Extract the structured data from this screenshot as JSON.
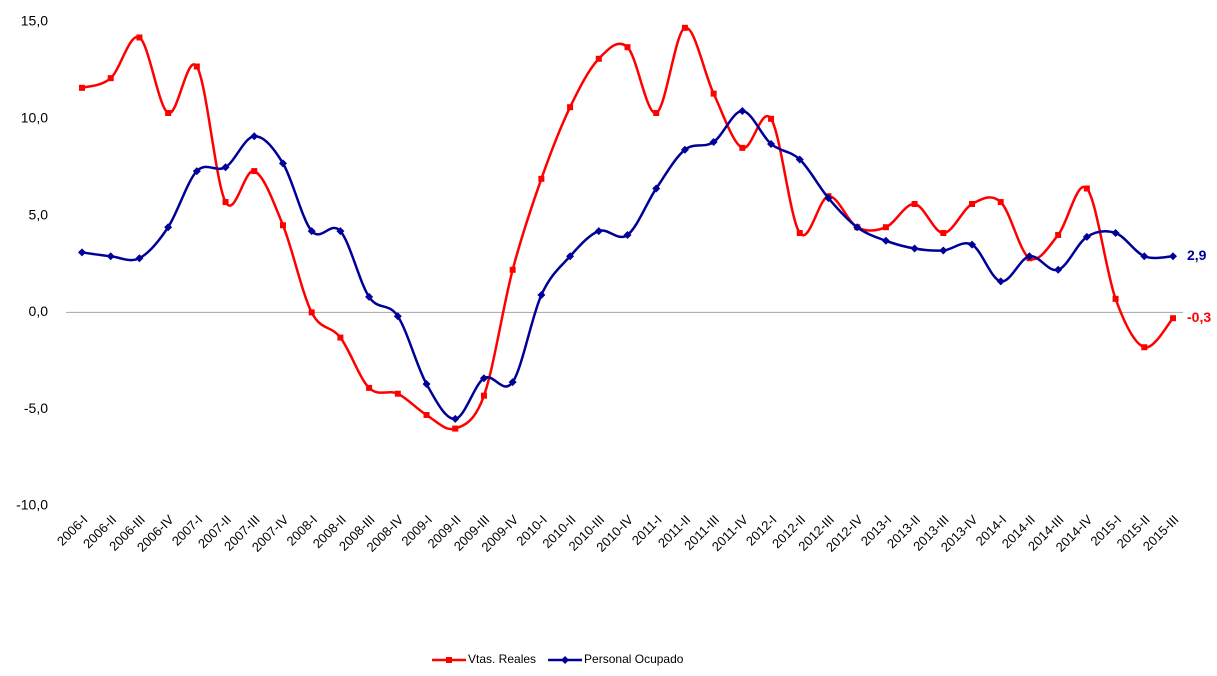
{
  "chart_data": {
    "type": "line",
    "categories": [
      "2006-I",
      "2006-II",
      "2006-III",
      "2006-IV",
      "2007-I",
      "2007-II",
      "2007-III",
      "2007-IV",
      "2008-I",
      "2008-II",
      "2008-III",
      "2008-IV",
      "2009-I",
      "2009-II",
      "2009-III",
      "2009-IV",
      "2010-I",
      "2010-II",
      "2010-III",
      "2010-IV",
      "2011-I",
      "2011-II",
      "2011-III",
      "2011-IV",
      "2012-I",
      "2012-II",
      "2012-III",
      "2012-IV",
      "2013-I",
      "2013-II",
      "2013-III",
      "2013-IV",
      "2014-I",
      "2014-II",
      "2014-III",
      "2014-IV",
      "2015-I",
      "2015-II",
      "2015-III"
    ],
    "series": [
      {
        "name": "Vtas. Reales",
        "color": "#ff0000",
        "marker": "square",
        "values": [
          11.6,
          12.1,
          14.2,
          10.3,
          12.7,
          5.7,
          7.3,
          4.5,
          0.0,
          -1.3,
          -3.9,
          -4.2,
          -5.3,
          -6.0,
          -4.3,
          2.2,
          6.9,
          10.6,
          13.1,
          13.7,
          10.3,
          14.7,
          11.3,
          8.5,
          10.0,
          4.1,
          6.0,
          4.4,
          4.4,
          5.6,
          4.1,
          5.6,
          5.7,
          2.8,
          4.0,
          6.4,
          0.7,
          -1.8,
          -0.3
        ],
        "value_labels": [
          null,
          null,
          null,
          null,
          null,
          null,
          null,
          null,
          null,
          null,
          null,
          null,
          null,
          null,
          null,
          null,
          null,
          null,
          null,
          null,
          null,
          null,
          null,
          null,
          null,
          null,
          null,
          null,
          null,
          null,
          null,
          null,
          null,
          null,
          null,
          null,
          null,
          null,
          "-0,3"
        ]
      },
      {
        "name": "Personal Ocupado",
        "color": "#000099",
        "marker": "diamond",
        "values": [
          3.1,
          2.9,
          2.8,
          4.4,
          7.3,
          7.5,
          9.1,
          7.7,
          4.2,
          4.2,
          0.8,
          -0.2,
          -3.7,
          -5.5,
          -3.4,
          -3.6,
          0.9,
          2.9,
          4.2,
          4.0,
          6.4,
          8.4,
          8.8,
          10.4,
          8.7,
          7.9,
          5.9,
          4.4,
          3.7,
          3.3,
          3.2,
          3.5,
          1.6,
          2.9,
          2.2,
          3.9,
          4.1,
          2.9,
          2.9
        ],
        "value_labels": [
          null,
          null,
          null,
          null,
          null,
          null,
          null,
          null,
          null,
          null,
          null,
          null,
          null,
          null,
          null,
          null,
          null,
          null,
          null,
          null,
          null,
          null,
          null,
          null,
          null,
          null,
          null,
          null,
          null,
          null,
          null,
          null,
          null,
          null,
          null,
          null,
          null,
          null,
          "2,9"
        ]
      }
    ],
    "ylim": [
      -10,
      15
    ],
    "yticks": [
      {
        "value": -10,
        "label": "-10,0"
      },
      {
        "value": -5,
        "label": "-5,0"
      },
      {
        "value": 0,
        "label": "0,0"
      },
      {
        "value": 5,
        "label": "5,0"
      },
      {
        "value": 10,
        "label": "10,0"
      },
      {
        "value": 15,
        "label": "15,0"
      }
    ],
    "grid": false,
    "legend": "bottom"
  }
}
